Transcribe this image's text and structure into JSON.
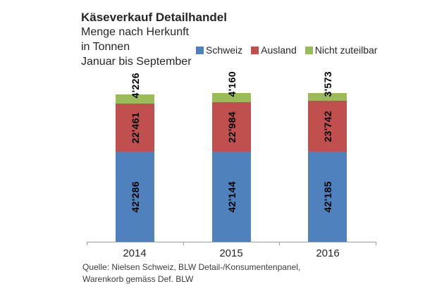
{
  "header": {
    "title": "Käseverkauf Detailhandel",
    "subtitle1": "Menge nach Herkunft",
    "subtitle2": "in Tonnen",
    "subtitle3": "Januar bis September"
  },
  "legend": {
    "items": [
      {
        "label": "Schweiz",
        "color": "#4F81BD"
      },
      {
        "label": "Ausland",
        "color": "#C0504D"
      },
      {
        "label": "Nicht zuteilbar",
        "color": "#9BBB59"
      }
    ]
  },
  "chart_data": {
    "type": "bar",
    "stacked": true,
    "title": "Käseverkauf Detailhandel",
    "subtitle": "Menge nach Herkunft in Tonnen, Januar bis September",
    "unit": "Tonnen",
    "categories": [
      "2014",
      "2015",
      "2016"
    ],
    "series": [
      {
        "name": "Schweiz",
        "color": "#4F81BD",
        "values": [
          42286,
          42144,
          42185
        ],
        "labels": [
          "42'286",
          "42'144",
          "42'185"
        ]
      },
      {
        "name": "Ausland",
        "color": "#C0504D",
        "values": [
          22461,
          22984,
          23742
        ],
        "labels": [
          "22'461",
          "22'984",
          "23'742"
        ]
      },
      {
        "name": "Nicht zuteilbar",
        "color": "#9BBB59",
        "values": [
          4226,
          4160,
          3573
        ],
        "labels": [
          "4'226",
          "4'160",
          "3'573"
        ]
      }
    ],
    "totals": [
      68973,
      69288,
      69500
    ],
    "ylim": [
      0,
      70000
    ],
    "grid": false,
    "legend_position": "top-right",
    "value_label_rotation": "vertical",
    "axis_color": "#9c9c9c"
  },
  "source": {
    "line1": "Quelle: Nielsen Schweiz, BLW Detail-/Konsumentenpanel,",
    "line2": "Warenkorb gemäss Def. BLW"
  }
}
